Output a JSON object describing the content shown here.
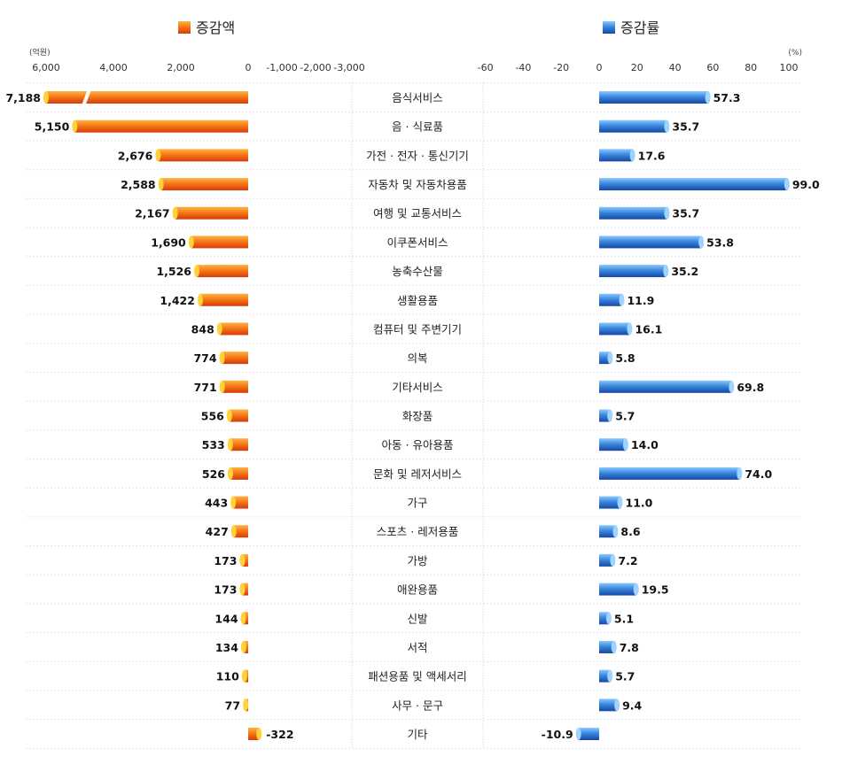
{
  "chart_data": [
    {
      "type": "bar",
      "orientation": "horizontal",
      "legend": "top",
      "series": [
        {
          "name": "증감액",
          "values": [
            7188,
            5150,
            2676,
            2588,
            2167,
            1690,
            1526,
            1422,
            848,
            774,
            771,
            556,
            533,
            526,
            443,
            427,
            173,
            173,
            144,
            134,
            110,
            77,
            -322
          ]
        }
      ],
      "unit": "(억원)",
      "xlim": [
        6000,
        -3000
      ],
      "xticks": [
        "6,000",
        "4,000",
        "2,000",
        "0",
        "-1,000",
        "-2,000",
        "-3,000"
      ],
      "data_labels": [
        "7,188",
        "5,150",
        "2,676",
        "2,588",
        "2,167",
        "1,690",
        "1,526",
        "1,422",
        "848",
        "774",
        "771",
        "556",
        "533",
        "526",
        "443",
        "427",
        "173",
        "173",
        "144",
        "134",
        "110",
        "77",
        "-322"
      ],
      "color": "#f06a10",
      "axis_break": true,
      "grid": true
    },
    {
      "type": "bar",
      "orientation": "horizontal",
      "legend": "top",
      "series": [
        {
          "name": "증감률",
          "values": [
            57.3,
            35.7,
            17.6,
            99.0,
            35.7,
            53.8,
            35.2,
            11.9,
            16.1,
            5.8,
            69.8,
            5.7,
            14.0,
            74.0,
            11.0,
            8.6,
            7.2,
            19.5,
            5.1,
            7.8,
            5.7,
            9.4,
            -10.9
          ]
        }
      ],
      "unit": "(%)",
      "xlim": [
        -60,
        100
      ],
      "xticks": [
        "-60",
        "-40",
        "-20",
        "0",
        "20",
        "40",
        "60",
        "80",
        "100"
      ],
      "data_labels": [
        "57.3",
        "35.7",
        "17.6",
        "99.0",
        "35.7",
        "53.8",
        "35.2",
        "11.9",
        "16.1",
        "5.8",
        "69.8",
        "5.7",
        "14.0",
        "74.0",
        "11.0",
        "8.6",
        "7.2",
        "19.5",
        "5.1",
        "7.8",
        "5.7",
        "9.4",
        "-10.9"
      ],
      "color": "#2f7fd6",
      "grid": true
    }
  ],
  "categories": [
    "음식서비스",
    "음 · 식료품",
    "가전 · 전자 · 통신기기",
    "자동차 및 자동차용품",
    "여행 및 교통서비스",
    "이쿠폰서비스",
    "농축수산물",
    "생활용품",
    "컴퓨터 및 주변기기",
    "의복",
    "기타서비스",
    "화장품",
    "아동 · 유아용품",
    "문화 및 레저서비스",
    "가구",
    "스포츠 · 레저용품",
    "가방",
    "애완용품",
    "신발",
    "서적",
    "패션용품 및 액세서리",
    "사무 · 문구",
    "기타"
  ]
}
